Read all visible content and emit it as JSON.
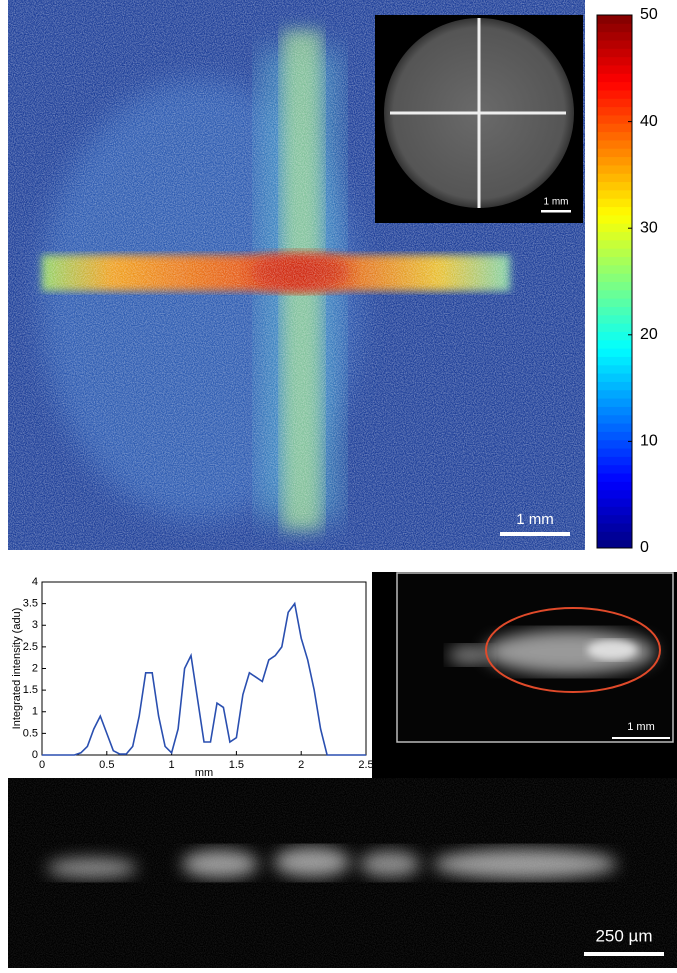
{
  "chart_data": [
    {
      "type": "colorbar",
      "colormap": "jet",
      "ylim": [
        0,
        50
      ],
      "yticks": [
        0,
        10,
        20,
        30,
        40,
        50
      ]
    },
    {
      "type": "line",
      "xlabel": "mm",
      "ylabel": "Integrated intensity (adu)",
      "color": "#2a4fb0",
      "x": [
        0,
        0.05,
        0.1,
        0.15,
        0.2,
        0.25,
        0.3,
        0.35,
        0.4,
        0.45,
        0.5,
        0.55,
        0.6,
        0.65,
        0.7,
        0.75,
        0.8,
        0.85,
        0.9,
        0.95,
        1.0,
        1.05,
        1.1,
        1.15,
        1.2,
        1.25,
        1.3,
        1.35,
        1.4,
        1.45,
        1.5,
        1.55,
        1.6,
        1.65,
        1.7,
        1.75,
        1.8,
        1.85,
        1.9,
        1.95,
        2.0,
        2.05,
        2.1,
        2.15,
        2.2,
        2.25,
        2.3,
        2.35,
        2.4,
        2.45,
        2.5
      ],
      "values": [
        0,
        0,
        0,
        0,
        0,
        0,
        0.05,
        0.2,
        0.6,
        0.9,
        0.5,
        0.1,
        0.02,
        0.02,
        0.2,
        0.9,
        1.9,
        1.9,
        0.9,
        0.2,
        0.05,
        0.6,
        2.0,
        2.3,
        1.3,
        0.3,
        0.3,
        1.2,
        1.1,
        0.3,
        0.4,
        1.4,
        1.9,
        1.8,
        1.7,
        2.2,
        2.3,
        2.5,
        3.3,
        3.5,
        2.7,
        2.2,
        1.5,
        0.6,
        0,
        0,
        0,
        0,
        0,
        0,
        0
      ],
      "xlim": [
        0,
        2.5
      ],
      "xticks": [
        0,
        0.5,
        1,
        1.5,
        2,
        2.5
      ],
      "ylim": [
        0,
        4
      ],
      "yticks": [
        0,
        0.5,
        1,
        1.5,
        2,
        2.5,
        3,
        3.5,
        4
      ]
    }
  ],
  "panels": {
    "heatmap_scale_bar": "1 mm",
    "inset_scale_bar": "1 mm",
    "ellipse_scale_bar": "1 mm",
    "bottom_scale_bar": "250 µm"
  }
}
